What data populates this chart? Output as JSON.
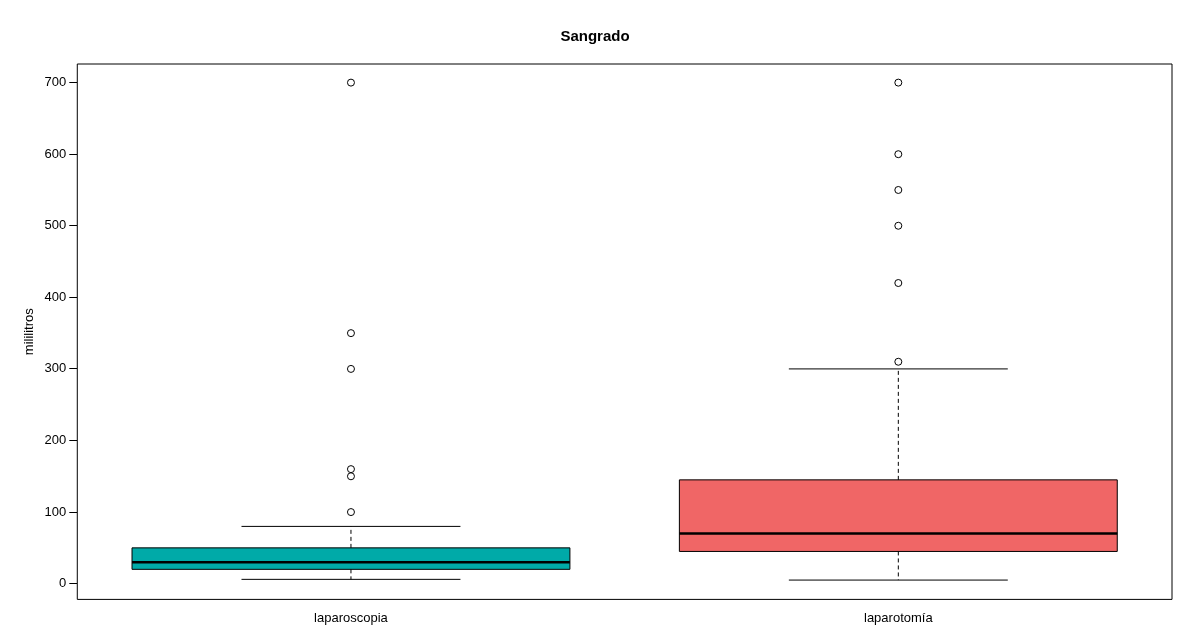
{
  "chart_data": {
    "type": "box",
    "title": "Sangrado",
    "ylabel": "mililitros",
    "categories": [
      "laparoscopia",
      "laparotomía"
    ],
    "colors": [
      "#00aaa8",
      "#f06666"
    ],
    "boxes": [
      {
        "low": 6,
        "q1": 20,
        "median": 30,
        "q3": 50,
        "high": 80,
        "outliers": [
          100,
          150,
          160,
          300,
          350,
          700
        ]
      },
      {
        "low": 5,
        "q1": 45,
        "median": 70,
        "q3": 145,
        "high": 300,
        "outliers": [
          310,
          420,
          500,
          550,
          600,
          700
        ]
      }
    ],
    "ylim": [
      -22,
      726
    ],
    "yticks": [
      0,
      100,
      200,
      300,
      400,
      500,
      600,
      700
    ],
    "grid": false,
    "legend": false
  }
}
